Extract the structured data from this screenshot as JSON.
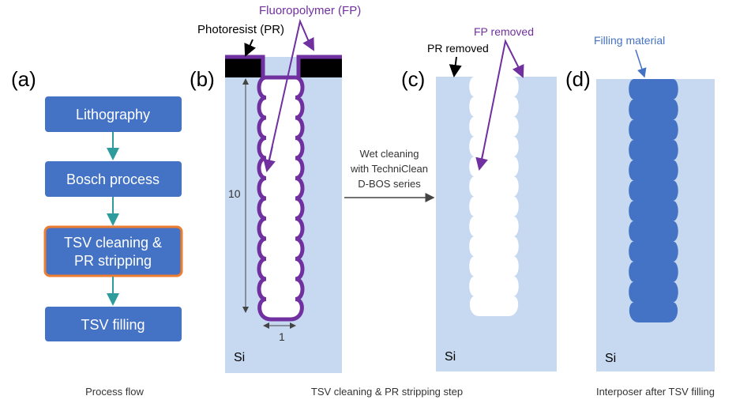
{
  "panel_labels": {
    "a": "(a)",
    "b": "(b)",
    "c": "(c)",
    "d": "(d)"
  },
  "process_flow": {
    "steps": [
      "Lithography",
      "Bosch process",
      "TSV cleaning &",
      "PR stripping",
      "TSV filling"
    ]
  },
  "annotations": {
    "fluoropolymer": "Fluoropolymer (FP)",
    "photoresist": "Photoresist (PR)",
    "depth": "10",
    "width": "1",
    "si_b": "Si",
    "wet_line1": "Wet cleaning",
    "wet_line2": "with TechniClean",
    "wet_line3": "D-BOS series",
    "pr_removed": "PR removed",
    "fp_removed": "FP removed",
    "si_c": "Si",
    "filling_material": "Filling material",
    "si_d": "Si"
  },
  "captions": {
    "a": "Process flow",
    "bc": "TSV cleaning & PR stripping step",
    "d": "Interposer after TSV filling"
  },
  "colors": {
    "box": "#4472c4",
    "silicon": "#c6d9f0",
    "fluoropolymer": "#7030a0",
    "flow_arrow": "#2e9c9c",
    "highlight_border": "#ed7d31",
    "filling": "#4472c4"
  }
}
